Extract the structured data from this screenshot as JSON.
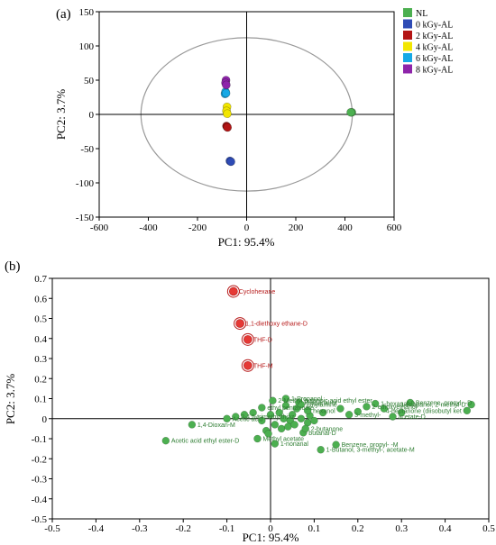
{
  "colors": {
    "NL": "#4caf50",
    "kgy0": "#2e4bb5",
    "kgy2": "#b31414",
    "kgy4": "#f2e600",
    "kgy6": "#16a9e6",
    "kgy8": "#8e24aa",
    "green_label": "#2e7d32",
    "red_label": "#b71c1c",
    "ellipse": "#999999"
  },
  "chart_data": [
    {
      "panel": "(a)",
      "type": "scatter",
      "xlabel": "PC1: 95.4%",
      "ylabel": "PC2: 3.7%",
      "xlim": [
        -600,
        600
      ],
      "ylim": [
        -150,
        150
      ],
      "xticks": [
        "-600",
        "-400",
        "-200",
        "0",
        "200",
        "400",
        "600"
      ],
      "yticks": [
        "150",
        "100",
        "50",
        "0",
        "-50",
        "-100",
        "-150"
      ],
      "xtick_values": [
        -600,
        -400,
        -200,
        0,
        200,
        400,
        600
      ],
      "ytick_values": [
        150,
        100,
        50,
        0,
        -50,
        -100,
        -150
      ],
      "grid": false,
      "legend_position": "right",
      "confidence_ellipse": {
        "center": [
          0,
          0
        ],
        "semi_axes": [
          430,
          112
        ]
      },
      "series": [
        {
          "name": "NL",
          "color": "#4caf50",
          "points": [
            [
              428,
              3
            ],
            [
              424,
              3
            ]
          ]
        },
        {
          "name": "0 kGy-AL",
          "color": "#2e4bb5",
          "points": [
            [
              -68,
              -68
            ],
            [
              -64,
              -69
            ]
          ]
        },
        {
          "name": "2 kGy-AL",
          "color": "#b31414",
          "points": [
            [
              -82,
              -17
            ],
            [
              -80,
              -18
            ],
            [
              -78,
              -19
            ]
          ]
        },
        {
          "name": "4 kGy-AL",
          "color": "#f2e600",
          "points": [
            [
              -80,
              11
            ],
            [
              -82,
              5
            ],
            [
              -79,
              1
            ]
          ]
        },
        {
          "name": "6 kGy-AL",
          "color": "#16a9e6",
          "points": [
            [
              -88,
              30
            ],
            [
              -86,
              33
            ],
            [
              -84,
              31
            ]
          ]
        },
        {
          "name": "8 kGy-AL",
          "color": "#8e24aa",
          "points": [
            [
              -84,
              50
            ],
            [
              -86,
              46
            ],
            [
              -83,
              43
            ]
          ]
        }
      ]
    },
    {
      "panel": "(b)",
      "type": "scatter",
      "xlabel": "PC1: 95.4%",
      "ylabel": "PC2: 3.7%",
      "xlim": [
        -0.5,
        0.5
      ],
      "ylim": [
        -0.5,
        0.7
      ],
      "xticks": [
        "-0.5",
        "-0.4",
        "-0.3",
        "-0.2",
        "-0.1",
        "0",
        "0.1",
        "0.2",
        "0.3",
        "0.4",
        "0.5"
      ],
      "yticks": [
        "0.7",
        "0.6",
        "0.5",
        "0.4",
        "0.3",
        "0.2",
        "0.1",
        "0",
        "-0.1",
        "-0.2",
        "-0.3",
        "-0.4",
        "-0.5"
      ],
      "xtick_values": [
        -0.5,
        -0.4,
        -0.3,
        -0.2,
        -0.1,
        0,
        0.1,
        0.2,
        0.3,
        0.4,
        0.5
      ],
      "ytick_values": [
        0.7,
        0.6,
        0.5,
        0.4,
        0.3,
        0.2,
        0.1,
        0,
        -0.1,
        -0.2,
        -0.3,
        -0.4,
        -0.5
      ],
      "grid": false,
      "red_points": [
        {
          "label": "Cyclohexane",
          "x": -0.085,
          "y": 0.635
        },
        {
          "label": "1,1-diethoxy ethane-D",
          "x": -0.07,
          "y": 0.475
        },
        {
          "label": "THF-D",
          "x": -0.052,
          "y": 0.395
        },
        {
          "label": "THF-M",
          "x": -0.052,
          "y": 0.265
        }
      ],
      "green_points": [
        {
          "label": "1-Propanol",
          "x": 0.035,
          "y": 0.1
        },
        {
          "label": "2-Methyl butanoic acid ethyl ester",
          "x": 0.005,
          "y": 0.09
        },
        {
          "label": "Propanal-M",
          "x": 0.065,
          "y": 0.08
        },
        {
          "label": "ethylamine",
          "x": 0.07,
          "y": 0.07
        },
        {
          "label": "ethyl pentanoate",
          "x": -0.02,
          "y": 0.055
        },
        {
          "label": "1-hexanal-D",
          "x": 0.24,
          "y": 0.075
        },
        {
          "label": "2-ethoxyethanol",
          "x": 0.22,
          "y": 0.06
        },
        {
          "label": "Benzene, propyl- -D",
          "x": 0.32,
          "y": 0.08
        },
        {
          "label": "1-Propanol, 2-methyl-D",
          "x": 0.46,
          "y": 0.07
        },
        {
          "label": "hexanol",
          "x": 0.085,
          "y": 0.04
        },
        {
          "label": "4-heptanone (diisobutyl ket",
          "x": 0.45,
          "y": 0.04
        },
        {
          "label": "3-methyl-",
          "x": 0.18,
          "y": 0.02
        },
        {
          "label": "acetate-D",
          "x": 0.28,
          "y": 0.01
        },
        {
          "label": "2,4,5-trimethylthiaz",
          "x": -0.08,
          "y": 0.01
        },
        {
          "label": "Acetic acid",
          "x": -0.1,
          "y": 0.0
        },
        {
          "label": "1,4-Dioxan-M",
          "x": -0.18,
          "y": -0.03
        },
        {
          "label": "Acetic acid ethyl ester-D",
          "x": -0.24,
          "y": -0.11
        },
        {
          "label": "Methyl acetate",
          "x": -0.03,
          "y": -0.1
        },
        {
          "label": "1-nonanal",
          "x": 0.01,
          "y": -0.125
        },
        {
          "label": "Benzene, propyl- -M",
          "x": 0.15,
          "y": -0.13
        },
        {
          "label": "1-Butanol, 3-methyl-, acetate-M",
          "x": 0.115,
          "y": -0.155
        },
        {
          "label": "butanal-D",
          "x": 0.075,
          "y": -0.07
        },
        {
          "label": "2-butanone",
          "x": 0.08,
          "y": -0.05
        }
      ],
      "green_unlabeled": [
        [
          0.0,
          0.02
        ],
        [
          0.02,
          0.03
        ],
        [
          0.03,
          0.0
        ],
        [
          0.045,
          -0.01
        ],
        [
          0.05,
          0.02
        ],
        [
          0.06,
          0.05
        ],
        [
          0.07,
          0.0
        ],
        [
          0.085,
          -0.02
        ],
        [
          0.09,
          0.015
        ],
        [
          -0.02,
          -0.01
        ],
        [
          -0.04,
          0.03
        ],
        [
          -0.06,
          0.02
        ],
        [
          0.01,
          -0.03
        ],
        [
          0.025,
          -0.05
        ],
        [
          0.04,
          -0.04
        ],
        [
          0.055,
          -0.03
        ],
        [
          -0.01,
          -0.06
        ],
        [
          0.1,
          -0.01
        ],
        [
          0.12,
          0.03
        ],
        [
          0.16,
          0.05
        ],
        [
          0.2,
          0.035
        ],
        [
          0.26,
          0.05
        ],
        [
          0.3,
          0.03
        ],
        [
          0.035,
          0.065
        ],
        [
          -0.005,
          -0.075
        ]
      ]
    }
  ],
  "legend": [
    "NL",
    "0 kGy-AL",
    "2 kGy-AL",
    "4 kGy-AL",
    "6 kGy-AL",
    "8 kGy-AL"
  ]
}
